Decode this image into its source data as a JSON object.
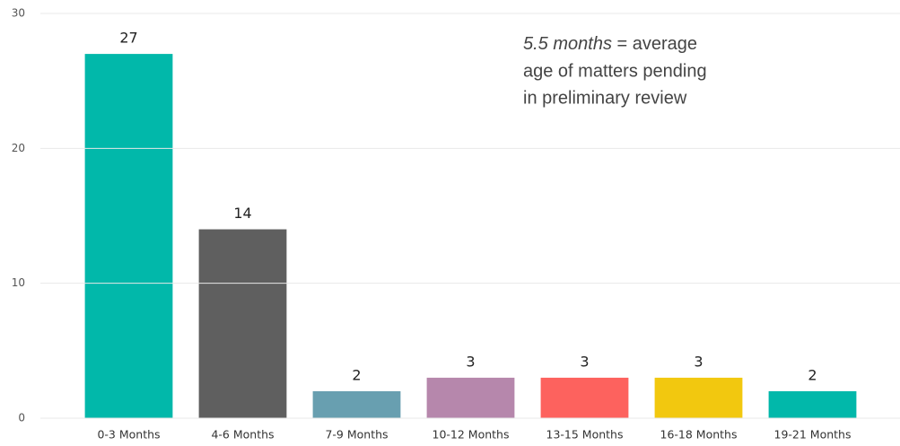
{
  "chart_data": {
    "type": "bar",
    "categories": [
      "0-3 Months",
      "4-6 Months",
      "7-9 Months",
      "10-12 Months",
      "13-15 Months",
      "16-18 Months",
      "19-21 Months"
    ],
    "values": [
      27,
      14,
      2,
      3,
      3,
      3,
      2
    ],
    "colors": [
      "#01b8aa",
      "#5f5f5f",
      "#689fb0",
      "#b687ac",
      "#fd625e",
      "#f2c80f",
      "#01b8aa"
    ],
    "ylim": [
      0,
      30
    ],
    "yticks": [
      0,
      10,
      20,
      30
    ],
    "grid": true,
    "annotation": {
      "emphasis": "5.5 months",
      "lines": [
        "= average",
        "age of matters pending",
        "in preliminary review"
      ]
    }
  }
}
